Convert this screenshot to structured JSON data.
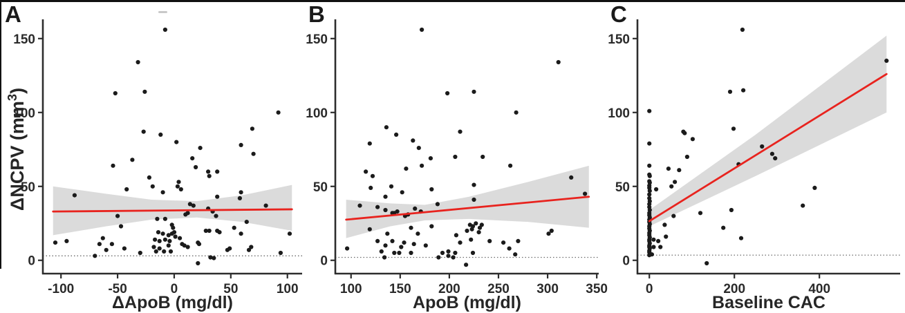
{
  "figure": {
    "y_axis_title": {
      "main": "ΔNCPV (mm",
      "sup": "3",
      "close": ")"
    },
    "colors": {
      "regression_line": "#e8231e",
      "confidence_band": "#d5d5d5",
      "points": "#1b1b1b",
      "axis": "#2d2d2d",
      "reference_line": "#6a6a6a",
      "border": "#111111",
      "background": "#ffffff"
    }
  },
  "chart_data": [
    {
      "type": "scatter",
      "label": "A",
      "xlabel": "ΔApoB (mg/dl)",
      "ylabel": "ΔNCPV (mm³)",
      "xlim": [
        -116,
        113
      ],
      "ylim": [
        -9,
        163
      ],
      "x_ticks": [
        -100,
        -50,
        0,
        50,
        100
      ],
      "y_ticks": [
        0,
        50,
        100,
        150
      ],
      "grid": false,
      "legend": "none",
      "reference_line_y": 3,
      "regression_line": {
        "x": [
          -107,
          104
        ],
        "y": [
          33,
          34.5
        ]
      },
      "confidence_band": [
        {
          "x": -107,
          "lo": 17,
          "hi": 50
        },
        {
          "x": -60,
          "lo": 23,
          "hi": 45
        },
        {
          "x": -20,
          "lo": 27.5,
          "hi": 41
        },
        {
          "x": 20,
          "lo": 29,
          "hi": 40
        },
        {
          "x": 60,
          "lo": 26,
          "hi": 44
        },
        {
          "x": 104,
          "lo": 20,
          "hi": 51
        }
      ],
      "points": [
        [
          -8,
          156
        ],
        [
          -32,
          134
        ],
        [
          -26,
          114
        ],
        [
          -52,
          113
        ],
        [
          92,
          100
        ],
        [
          69,
          89
        ],
        [
          -27,
          87
        ],
        [
          -12,
          85
        ],
        [
          2,
          80
        ],
        [
          59,
          78
        ],
        [
          23,
          76
        ],
        [
          70,
          72
        ],
        [
          16,
          69
        ],
        [
          -37,
          68
        ],
        [
          -54,
          64
        ],
        [
          19,
          63
        ],
        [
          30,
          60
        ],
        [
          38,
          60
        ],
        [
          31,
          57
        ],
        [
          -22,
          56
        ],
        [
          4,
          53
        ],
        [
          -19,
          50
        ],
        [
          3,
          50
        ],
        [
          6,
          48
        ],
        [
          -42,
          48
        ],
        [
          -10,
          46
        ],
        [
          59,
          46
        ],
        [
          -88,
          44
        ],
        [
          38,
          43
        ],
        [
          58,
          42
        ],
        [
          14,
          38
        ],
        [
          17,
          37
        ],
        [
          81,
          37
        ],
        [
          30,
          35
        ],
        [
          34,
          33
        ],
        [
          12,
          32
        ],
        [
          37,
          30
        ],
        [
          10,
          31
        ],
        [
          -50,
          30
        ],
        [
          -15,
          28
        ],
        [
          -8,
          28
        ],
        [
          64,
          26
        ],
        [
          -2,
          24
        ],
        [
          -47,
          23
        ],
        [
          53,
          22
        ],
        [
          -1,
          22
        ],
        [
          28,
          20
        ],
        [
          31,
          20
        ],
        [
          38,
          20
        ],
        [
          40,
          19
        ],
        [
          0,
          19
        ],
        [
          -14,
          19
        ],
        [
          -10,
          18
        ],
        [
          -2,
          18
        ],
        [
          59,
          18
        ],
        [
          102,
          18
        ],
        [
          -5,
          17
        ],
        [
          1,
          16
        ],
        [
          -63,
          15
        ],
        [
          5,
          15
        ],
        [
          -17,
          14
        ],
        [
          -8,
          14
        ],
        [
          -4,
          13
        ],
        [
          -13,
          13
        ],
        [
          -95,
          13
        ],
        [
          -105,
          12
        ],
        [
          21,
          12
        ],
        [
          22,
          11
        ],
        [
          -66,
          11
        ],
        [
          -55,
          11
        ],
        [
          7,
          11
        ],
        [
          9,
          10
        ],
        [
          -5,
          10
        ],
        [
          12,
          9
        ],
        [
          -18,
          9
        ],
        [
          -13,
          8
        ],
        [
          68,
          9
        ],
        [
          49,
          8
        ],
        [
          47,
          7
        ],
        [
          66,
          7
        ],
        [
          -60,
          7
        ],
        [
          -44,
          8
        ],
        [
          -9,
          6
        ],
        [
          -16,
          6
        ],
        [
          -3,
          6
        ],
        [
          94,
          5
        ],
        [
          -30,
          5
        ],
        [
          -70,
          3
        ],
        [
          32,
          2
        ],
        [
          35,
          1.5
        ],
        [
          21,
          -2
        ]
      ]
    },
    {
      "type": "scatter",
      "label": "B",
      "xlabel": "ApoB (mg/dl)",
      "ylabel": "ΔNCPV (mm³)",
      "xlim": [
        84,
        352
      ],
      "ylim": [
        -9,
        163
      ],
      "x_ticks": [
        100,
        150,
        200,
        250,
        300,
        350
      ],
      "y_ticks": [
        0,
        50,
        100,
        150
      ],
      "grid": false,
      "legend": "none",
      "reference_line_y": 2,
      "regression_line": {
        "x": [
          95,
          342
        ],
        "y": [
          27.5,
          43
        ]
      },
      "confidence_band": [
        {
          "x": 95,
          "lo": 15,
          "hi": 41
        },
        {
          "x": 140,
          "lo": 23,
          "hi": 38.5
        },
        {
          "x": 175,
          "lo": 27,
          "hi": 37.5
        },
        {
          "x": 220,
          "lo": 28,
          "hi": 43
        },
        {
          "x": 280,
          "lo": 26,
          "hi": 53
        },
        {
          "x": 342,
          "lo": 22,
          "hi": 64
        }
      ],
      "points": [
        [
          172,
          156
        ],
        [
          311,
          134
        ],
        [
          225,
          114
        ],
        [
          198,
          113
        ],
        [
          268,
          100
        ],
        [
          136,
          90
        ],
        [
          211,
          87
        ],
        [
          146,
          85
        ],
        [
          163,
          81
        ],
        [
          119,
          79
        ],
        [
          169,
          76
        ],
        [
          234,
          70
        ],
        [
          206,
          70
        ],
        [
          181,
          69
        ],
        [
          172,
          64
        ],
        [
          262,
          64
        ],
        [
          156,
          62
        ],
        [
          115,
          60
        ],
        [
          122,
          57
        ],
        [
          324,
          56
        ],
        [
          225,
          51
        ],
        [
          141,
          50
        ],
        [
          120,
          49
        ],
        [
          182,
          48
        ],
        [
          152,
          46
        ],
        [
          338,
          45
        ],
        [
          135,
          43
        ],
        [
          225,
          41
        ],
        [
          188,
          38
        ],
        [
          109,
          37
        ],
        [
          127,
          36
        ],
        [
          165,
          35
        ],
        [
          135,
          34
        ],
        [
          147,
          33
        ],
        [
          171,
          33
        ],
        [
          144,
          32
        ],
        [
          142,
          32
        ],
        [
          158,
          31
        ],
        [
          155,
          30
        ],
        [
          227,
          25
        ],
        [
          221,
          24
        ],
        [
          233,
          24
        ],
        [
          224,
          23
        ],
        [
          182,
          23
        ],
        [
          161,
          22
        ],
        [
          231,
          22
        ],
        [
          119,
          21
        ],
        [
          223,
          21
        ],
        [
          218,
          20
        ],
        [
          304,
          20
        ],
        [
          230,
          19
        ],
        [
          301,
          18
        ],
        [
          137,
          18
        ],
        [
          168,
          18
        ],
        [
          207,
          17
        ],
        [
          222,
          14
        ],
        [
          127,
          13
        ],
        [
          142,
          13
        ],
        [
          241,
          13
        ],
        [
          270,
          13
        ],
        [
          255,
          12
        ],
        [
          211,
          12
        ],
        [
          154,
          12
        ],
        [
          164,
          11
        ],
        [
          135,
          10
        ],
        [
          176,
          10
        ],
        [
          151,
          9
        ],
        [
          96,
          8
        ],
        [
          261,
          8
        ],
        [
          131,
          6
        ],
        [
          199,
          6
        ],
        [
          224,
          5
        ],
        [
          206,
          5
        ],
        [
          144,
          5
        ],
        [
          149,
          5
        ],
        [
          161,
          5
        ],
        [
          193,
          5
        ],
        [
          267,
          4
        ],
        [
          134,
          2
        ],
        [
          189,
          2
        ],
        [
          204,
          2
        ],
        [
          199,
          3
        ],
        [
          217,
          -3
        ]
      ]
    },
    {
      "type": "scatter",
      "label": "C",
      "xlabel": "Baseline CAC",
      "ylabel": "ΔNCPV (mm³)",
      "xlim": [
        -28,
        590
      ],
      "ylim": [
        -9,
        163
      ],
      "x_ticks": [
        0,
        200,
        400
      ],
      "y_ticks": [
        0,
        50,
        100,
        150
      ],
      "grid": false,
      "legend": "none",
      "reference_line_y": 3.5,
      "regression_line": {
        "x": [
          0,
          558
        ],
        "y": [
          26.5,
          126
        ]
      },
      "confidence_band": [
        {
          "x": 0,
          "lo": 23,
          "hi": 34
        },
        {
          "x": 250,
          "lo": 57,
          "hi": 85
        },
        {
          "x": 558,
          "lo": 100,
          "hi": 152
        }
      ],
      "points": [
        [
          0,
          101
        ],
        [
          0,
          79
        ],
        [
          0,
          64
        ],
        [
          0,
          58
        ],
        [
          1,
          57
        ],
        [
          0,
          53.5
        ],
        [
          1,
          52.5
        ],
        [
          0,
          50.5
        ],
        [
          0,
          49
        ],
        [
          1,
          47
        ],
        [
          0,
          44.5
        ],
        [
          0,
          42
        ],
        [
          1,
          40
        ],
        [
          0,
          38
        ],
        [
          0,
          36
        ],
        [
          1,
          34
        ],
        [
          0,
          32
        ],
        [
          0,
          30.5
        ],
        [
          1,
          29
        ],
        [
          0,
          27.5
        ],
        [
          0,
          26
        ],
        [
          1,
          24.5
        ],
        [
          0,
          23
        ],
        [
          0,
          21.5
        ],
        [
          1,
          20
        ],
        [
          0,
          18.5
        ],
        [
          0,
          17
        ],
        [
          1,
          15.5
        ],
        [
          0,
          14
        ],
        [
          0,
          13
        ],
        [
          1,
          11.5
        ],
        [
          0,
          10
        ],
        [
          0,
          9
        ],
        [
          1,
          8
        ],
        [
          0,
          6.5
        ],
        [
          0,
          5.5
        ],
        [
          1,
          4.5
        ],
        [
          0,
          3.5
        ],
        [
          219,
          156
        ],
        [
          558,
          135
        ],
        [
          221,
          115
        ],
        [
          190,
          114
        ],
        [
          198,
          89
        ],
        [
          80,
          87
        ],
        [
          83,
          86
        ],
        [
          102,
          82
        ],
        [
          265,
          77
        ],
        [
          289,
          72
        ],
        [
          296,
          69
        ],
        [
          89,
          70
        ],
        [
          210,
          65
        ],
        [
          45,
          62
        ],
        [
          70,
          61
        ],
        [
          60,
          53
        ],
        [
          52,
          50
        ],
        [
          389,
          49
        ],
        [
          16,
          48
        ],
        [
          361,
          37
        ],
        [
          193,
          34
        ],
        [
          57,
          30
        ],
        [
          120,
          32
        ],
        [
          36,
          24
        ],
        [
          174,
          22
        ],
        [
          216,
          15
        ],
        [
          39,
          16
        ],
        [
          21,
          13
        ],
        [
          10,
          14
        ],
        [
          26,
          9
        ],
        [
          10,
          9
        ],
        [
          6,
          4
        ],
        [
          135,
          -2
        ]
      ]
    }
  ]
}
